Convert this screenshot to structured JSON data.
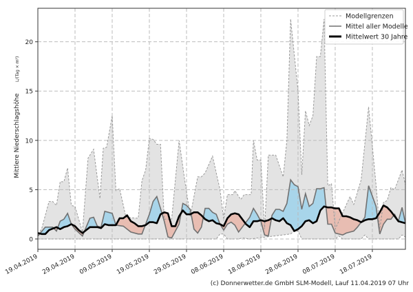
{
  "chart_data": {
    "type": "area",
    "start_date": "19.04.2019",
    "x_unit": "days since start",
    "ylabel": "Mittlere Niederschlagshöhe",
    "ylabel_unit": "L/(Tag × m²)",
    "ylim": [
      -1.05,
      23.4
    ],
    "xlim": [
      0,
      98.9
    ],
    "grid": true,
    "yticks": [
      0,
      5,
      10,
      15,
      20
    ],
    "xticks": [
      {
        "day": 0,
        "label": "19.04.2019"
      },
      {
        "day": 10,
        "label": "29.04.2019"
      },
      {
        "day": 20,
        "label": "09.05.2019"
      },
      {
        "day": 30,
        "label": "19.05.2019"
      },
      {
        "day": 40,
        "label": "29.05.2019"
      },
      {
        "day": 50,
        "label": "08.06.2019"
      },
      {
        "day": 60,
        "label": "18.06.2019"
      },
      {
        "day": 70,
        "label": "28.06.2019"
      },
      {
        "day": 80,
        "label": "08.07.2019"
      },
      {
        "day": 90,
        "label": "18.07.2019"
      }
    ],
    "legend_position": "top-right",
    "legend": [
      "Modellgrenzen",
      "Mittel aller Modelle",
      "Mittelwert 30 Jahre"
    ],
    "series": [
      {
        "name": "Modellgrenzen (max)",
        "points": [
          [
            0,
            0.5
          ],
          [
            1,
            1
          ],
          [
            3,
            3.8
          ],
          [
            4,
            3.8
          ],
          [
            5,
            3.4
          ],
          [
            6,
            5.8
          ],
          [
            7,
            5.8
          ],
          [
            8,
            7.2
          ],
          [
            9,
            3.4
          ],
          [
            10,
            3.3
          ],
          [
            12,
            0.7
          ],
          [
            13.5,
            8.2
          ],
          [
            15,
            9.1
          ],
          [
            16.7,
            4.1
          ],
          [
            17.6,
            9.2
          ],
          [
            18.5,
            9.3
          ],
          [
            20,
            12.5
          ],
          [
            21,
            4.9
          ],
          [
            22,
            5.1
          ],
          [
            23.7,
            2.2
          ],
          [
            27,
            2.1
          ],
          [
            28,
            5.9
          ],
          [
            29,
            7
          ],
          [
            30,
            10.2
          ],
          [
            31,
            10.1
          ],
          [
            32,
            9.6
          ],
          [
            33,
            9.6
          ],
          [
            34,
            2
          ],
          [
            36,
            2
          ],
          [
            38,
            10
          ],
          [
            39.5,
            6
          ],
          [
            41,
            2.3
          ],
          [
            43,
            6.3
          ],
          [
            44,
            6.3
          ],
          [
            45,
            6.7
          ],
          [
            47,
            8.4
          ],
          [
            49,
            5
          ],
          [
            50,
            2
          ],
          [
            51,
            4.5
          ],
          [
            52.5,
            4.5
          ],
          [
            53,
            4.9
          ],
          [
            54.6,
            4
          ],
          [
            55.5,
            4.5
          ],
          [
            57.4,
            4.5
          ],
          [
            58,
            10
          ],
          [
            59,
            8
          ],
          [
            60,
            8
          ],
          [
            61,
            1
          ],
          [
            62,
            8.5
          ],
          [
            64,
            8.5
          ],
          [
            66,
            6.3
          ],
          [
            67,
            10
          ],
          [
            68,
            22.3
          ],
          [
            70,
            15
          ],
          [
            71,
            6.5
          ],
          [
            72,
            13
          ],
          [
            73,
            11.5
          ],
          [
            74,
            12.5
          ],
          [
            75,
            18.5
          ],
          [
            76,
            18.5
          ],
          [
            77,
            22.3
          ],
          [
            78,
            5.4
          ],
          [
            79,
            5.6
          ],
          [
            80,
            1
          ],
          [
            84,
            4.3
          ],
          [
            85,
            3.5
          ],
          [
            87,
            6
          ],
          [
            89,
            13.4
          ],
          [
            91,
            5.5
          ],
          [
            92,
            1
          ],
          [
            93,
            3.7
          ],
          [
            94,
            3.9
          ],
          [
            95,
            5.2
          ],
          [
            96,
            5
          ],
          [
            98,
            7
          ],
          [
            98.9,
            5.5
          ]
        ]
      },
      {
        "name": "Modellgrenzen (min)",
        "points": [
          [
            0,
            0
          ],
          [
            48,
            0
          ],
          [
            49,
            0.5
          ],
          [
            50,
            0.5
          ],
          [
            51,
            0
          ],
          [
            54,
            0
          ],
          [
            55,
            0.1
          ],
          [
            57,
            0
          ],
          [
            68,
            0.5
          ],
          [
            69,
            0.8
          ],
          [
            70,
            0.8
          ],
          [
            71,
            0
          ],
          [
            80,
            0
          ],
          [
            81,
            0.3
          ],
          [
            82,
            0
          ],
          [
            87,
            0
          ],
          [
            88,
            0.4
          ],
          [
            89,
            0
          ],
          [
            97,
            0
          ],
          [
            98,
            0.4
          ],
          [
            98.9,
            0.2
          ]
        ]
      },
      {
        "name": "Mittel aller Modelle",
        "points": [
          [
            0,
            0.3
          ],
          [
            2,
            1.2
          ],
          [
            4,
            1.2
          ],
          [
            5,
            0.8
          ],
          [
            6,
            1.8
          ],
          [
            7,
            2.0
          ],
          [
            8,
            2.6
          ],
          [
            9,
            1.5
          ],
          [
            10,
            1.0
          ],
          [
            12,
            0.3
          ],
          [
            14,
            2.1
          ],
          [
            15,
            2.2
          ],
          [
            16,
            1.3
          ],
          [
            17,
            1.2
          ],
          [
            18,
            2.8
          ],
          [
            20,
            2.6
          ],
          [
            21,
            1.4
          ],
          [
            23,
            1.3
          ],
          [
            25,
            0.7
          ],
          [
            27,
            0.5
          ],
          [
            28,
            0.5
          ],
          [
            30,
            2.5
          ],
          [
            31,
            3.8
          ],
          [
            32,
            4.3
          ],
          [
            33,
            3.1
          ],
          [
            34,
            1.8
          ],
          [
            35,
            0.2
          ],
          [
            36,
            0.1
          ],
          [
            38,
            1.5
          ],
          [
            39,
            3.6
          ],
          [
            40,
            3.4
          ],
          [
            41,
            3.0
          ],
          [
            42,
            1.0
          ],
          [
            43,
            0.6
          ],
          [
            44,
            1.2
          ],
          [
            45,
            3.1
          ],
          [
            46,
            3.1
          ],
          [
            47,
            2.7
          ],
          [
            48,
            2.5
          ],
          [
            49,
            1.5
          ],
          [
            50,
            0.9
          ],
          [
            51,
            1.5
          ],
          [
            52,
            1.7
          ],
          [
            53,
            1.4
          ],
          [
            54,
            0.7
          ],
          [
            55,
            1.2
          ],
          [
            57,
            2.2
          ],
          [
            58,
            3.1
          ],
          [
            59,
            2.5
          ],
          [
            60,
            1.8
          ],
          [
            61,
            0.4
          ],
          [
            62,
            0.3
          ],
          [
            63,
            2.4
          ],
          [
            64,
            3.0
          ],
          [
            65,
            3.0
          ],
          [
            66,
            2.8
          ],
          [
            67,
            3.6
          ],
          [
            68,
            6.0
          ],
          [
            69,
            5.5
          ],
          [
            70,
            5.3
          ],
          [
            71,
            3.0
          ],
          [
            72,
            4.6
          ],
          [
            73,
            3.3
          ],
          [
            74,
            3.6
          ],
          [
            75,
            5.1
          ],
          [
            76,
            5.1
          ],
          [
            77,
            5.2
          ],
          [
            78,
            1.5
          ],
          [
            79,
            1.5
          ],
          [
            80,
            0.6
          ],
          [
            82,
            0.4
          ],
          [
            83,
            0.6
          ],
          [
            85,
            0.8
          ],
          [
            86,
            1.2
          ],
          [
            87,
            1.7
          ],
          [
            88,
            2.2
          ],
          [
            89,
            5.4
          ],
          [
            91,
            3.3
          ],
          [
            92,
            0.5
          ],
          [
            93,
            1.5
          ],
          [
            94,
            2.0
          ],
          [
            95,
            2.0
          ],
          [
            96,
            2.5
          ],
          [
            97,
            1.8
          ],
          [
            98,
            3.2
          ],
          [
            98.9,
            1.6
          ]
        ]
      },
      {
        "name": "Mittelwert 30 Jahre",
        "points": [
          [
            0,
            0.6
          ],
          [
            1,
            0.5
          ],
          [
            2,
            0.5
          ],
          [
            3,
            0.9
          ],
          [
            5,
            1.2
          ],
          [
            6,
            1.0
          ],
          [
            7,
            1.2
          ],
          [
            8,
            1.3
          ],
          [
            9,
            1.5
          ],
          [
            10,
            1.3
          ],
          [
            11,
            0.9
          ],
          [
            12,
            0.6
          ],
          [
            13,
            0.9
          ],
          [
            14,
            1.2
          ],
          [
            16,
            1.2
          ],
          [
            17,
            1.1
          ],
          [
            18,
            1.5
          ],
          [
            19,
            1.4
          ],
          [
            21,
            1.4
          ],
          [
            22,
            2.1
          ],
          [
            23,
            2.1
          ],
          [
            24,
            2.4
          ],
          [
            25,
            1.8
          ],
          [
            26,
            1.6
          ],
          [
            27,
            1.3
          ],
          [
            28,
            1.3
          ],
          [
            29,
            1.4
          ],
          [
            30,
            1.7
          ],
          [
            31,
            1.7
          ],
          [
            32,
            1.6
          ],
          [
            33,
            2.5
          ],
          [
            34,
            2.7
          ],
          [
            35,
            2.6
          ],
          [
            36,
            1.3
          ],
          [
            37,
            1.3
          ],
          [
            38,
            2.3
          ],
          [
            39,
            2.9
          ],
          [
            40,
            2.5
          ],
          [
            41,
            2.5
          ],
          [
            42,
            2.7
          ],
          [
            43,
            2.7
          ],
          [
            44,
            2.4
          ],
          [
            45,
            2.0
          ],
          [
            46,
            1.8
          ],
          [
            47,
            1.9
          ],
          [
            48,
            1.6
          ],
          [
            49,
            1.5
          ],
          [
            50,
            1.3
          ],
          [
            51,
            2.1
          ],
          [
            52,
            2.5
          ],
          [
            53,
            2.6
          ],
          [
            54,
            2.5
          ],
          [
            55,
            2.0
          ],
          [
            56,
            1.5
          ],
          [
            57,
            1.2
          ],
          [
            58,
            1.8
          ],
          [
            59,
            1.8
          ],
          [
            60,
            1.9
          ],
          [
            61,
            1.8
          ],
          [
            62,
            1.9
          ],
          [
            63,
            2.1
          ],
          [
            64,
            1.9
          ],
          [
            65,
            1.8
          ],
          [
            66,
            2.1
          ],
          [
            67,
            1.6
          ],
          [
            68,
            1.4
          ],
          [
            69,
            0.8
          ],
          [
            70,
            1.0
          ],
          [
            71,
            1.3
          ],
          [
            72,
            1.8
          ],
          [
            73,
            1.9
          ],
          [
            74,
            1.6
          ],
          [
            75,
            1.8
          ],
          [
            76,
            2.9
          ],
          [
            77,
            3.3
          ],
          [
            78,
            3.2
          ],
          [
            79,
            3.2
          ],
          [
            80,
            3.1
          ],
          [
            81,
            3.1
          ],
          [
            82,
            2.3
          ],
          [
            83,
            2.3
          ],
          [
            84,
            2.2
          ],
          [
            85,
            2.0
          ],
          [
            86,
            1.9
          ],
          [
            87,
            1.7
          ],
          [
            88,
            1.9
          ],
          [
            89,
            2.0
          ],
          [
            90,
            2.0
          ],
          [
            91,
            2.1
          ],
          [
            92,
            2.7
          ],
          [
            93,
            3.4
          ],
          [
            94,
            3.2
          ],
          [
            95,
            2.8
          ],
          [
            96,
            2.3
          ],
          [
            97,
            1.8
          ],
          [
            98.9,
            1.6
          ]
        ]
      }
    ],
    "colors": {
      "band": "#e3e3e3",
      "above": "#a8d5ea",
      "below": "#e8bdb2",
      "model_mean": "#707070",
      "mean30": "#000000"
    }
  },
  "footer": "(c) Donnerwetter.de GmbH SLM-Modell, Lauf 11.04.2019 07 Uhr"
}
